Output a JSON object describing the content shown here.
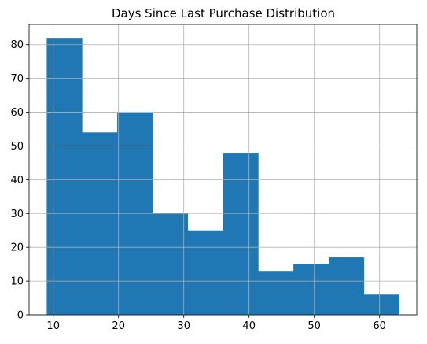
{
  "chart_data": {
    "type": "bar",
    "subtype": "histogram",
    "title": "Days Since Last Purchase Distribution",
    "xlabel": "",
    "ylabel": "",
    "bin_edges": [
      9,
      14.4,
      19.8,
      25.2,
      30.6,
      36.0,
      41.4,
      46.8,
      52.2,
      57.6,
      63
    ],
    "values": [
      82,
      54,
      60,
      30,
      25,
      48,
      13,
      15,
      17,
      6
    ],
    "xlim": [
      6.3,
      65.7
    ],
    "ylim": [
      0,
      86
    ],
    "xticks": [
      10,
      20,
      30,
      40,
      50,
      60
    ],
    "yticks": [
      0,
      10,
      20,
      30,
      40,
      50,
      60,
      70,
      80
    ],
    "grid": true,
    "bar_color": "#1f77b4"
  }
}
